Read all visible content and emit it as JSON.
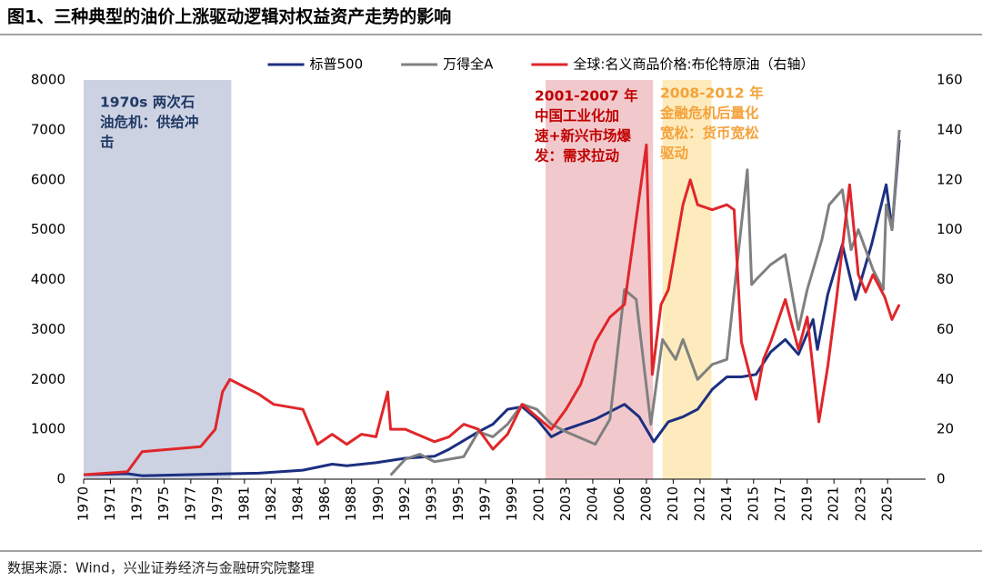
{
  "chart_data": {
    "type": "line",
    "title": "图1、三种典型的油价上涨驱动逻辑对权益资产走势的影响",
    "source": "数据来源：Wind，兴业证券经济与金融研究院整理",
    "legend": "top",
    "xlim": [
      1970,
      2027.6
    ],
    "xticks": [
      1970,
      {
        "value": 1971.83,
        "label": "1971"
      },
      {
        "value": 1973.67,
        "label": "1973"
      },
      {
        "value": 1975.5,
        "label": "1975"
      },
      {
        "value": 1977.33,
        "label": "1977"
      },
      {
        "value": 1979.17,
        "label": "1979"
      },
      1981,
      {
        "value": 1982.83,
        "label": "1982"
      },
      {
        "value": 1984.67,
        "label": "1984"
      },
      {
        "value": 1986.5,
        "label": "1986"
      },
      {
        "value": 1988.33,
        "label": "1988"
      },
      {
        "value": 1990.17,
        "label": "1990"
      },
      1992,
      {
        "value": 1993.83,
        "label": "1993"
      },
      {
        "value": 1995.67,
        "label": "1995"
      },
      {
        "value": 1997.5,
        "label": "1997"
      },
      {
        "value": 1999.33,
        "label": "1999"
      },
      {
        "value": 2001.17,
        "label": "2001"
      },
      2003,
      {
        "value": 2004.83,
        "label": "2004"
      },
      {
        "value": 2006.67,
        "label": "2006"
      },
      {
        "value": 2008.5,
        "label": "2008"
      },
      {
        "value": 2010.33,
        "label": "2010"
      },
      {
        "value": 2012.17,
        "label": "2012"
      },
      2014,
      {
        "value": 2015.83,
        "label": "2015"
      },
      {
        "value": 2017.67,
        "label": "2017"
      },
      {
        "value": 2019.5,
        "label": "2019"
      },
      {
        "value": 2021.33,
        "label": "2021"
      },
      {
        "value": 2023.17,
        "label": "2023"
      },
      2025
    ],
    "ylim": [
      0,
      8000
    ],
    "yticks": [
      0,
      1000,
      2000,
      3000,
      4000,
      5000,
      6000,
      7000,
      8000
    ],
    "y2lim": [
      0,
      160
    ],
    "y2ticks": [
      0,
      20,
      40,
      60,
      80,
      100,
      120,
      140,
      160
    ],
    "shaded_regions": [
      {
        "x": [
          1970,
          1980.1
        ],
        "color": "#ccd2e2",
        "text_color": "#1f3864",
        "lines": [
          "1970s  两次石",
          "油危机：供给冲",
          "击"
        ]
      },
      {
        "x": [
          2001.6,
          2008.95
        ],
        "color": "#f1c9cc",
        "text_color": "#c00000",
        "lines": [
          "2001-2007  年",
          "中国工业化加",
          "速+新兴市场爆",
          "发：需求拉动"
        ]
      },
      {
        "x": [
          2009.6,
          2012.95
        ],
        "color": "#fdebbd",
        "text_color": "#f4a23a",
        "lines": [
          "2008-2012  年",
          "金融危机后量化",
          "宽松：货币宽松",
          "驱动"
        ]
      }
    ],
    "series": [
      {
        "name": "标普500",
        "color": "#1c2f80",
        "axis": "y",
        "x": [
          1970,
          1973,
          1974,
          1980,
          1982,
          1985,
          1987,
          1988,
          1990,
          1992,
          1994,
          1995,
          1997,
          1998,
          1999,
          2000,
          2001,
          2002,
          2003,
          2005,
          2007,
          2008,
          2009,
          2010,
          2011,
          2012,
          2013,
          2014,
          2015,
          2016,
          2017,
          2018,
          2018.9,
          2019.9,
          2020.2,
          2020.9,
          2021.9,
          2022.8,
          2023.9,
          2024.9,
          2025.3,
          2025.8
        ],
        "values": [
          90,
          110,
          70,
          110,
          120,
          180,
          300,
          270,
          330,
          420,
          460,
          600,
          950,
          1100,
          1400,
          1450,
          1200,
          850,
          1000,
          1200,
          1500,
          1250,
          750,
          1150,
          1250,
          1400,
          1800,
          2050,
          2050,
          2100,
          2550,
          2800,
          2500,
          3200,
          2600,
          3700,
          4700,
          3600,
          4700,
          5900,
          5000,
          6800
        ]
      },
      {
        "name": "万得全A",
        "color": "#808080",
        "axis": "y",
        "x": [
          1991,
          1992,
          1993,
          1994,
          1996,
          1997,
          1998,
          1999,
          2000,
          2001,
          2002,
          2003,
          2005,
          2006,
          2007,
          2007.8,
          2008.8,
          2009.6,
          2010.5,
          2011,
          2012,
          2013,
          2014,
          2015.4,
          2015.7,
          2016,
          2017,
          2018,
          2018.9,
          2019.5,
          2020.5,
          2021,
          2021.9,
          2022.5,
          2023,
          2024,
          2024.7,
          2024.9,
          2025.3,
          2025.8
        ],
        "values": [
          80,
          400,
          500,
          350,
          450,
          950,
          850,
          1100,
          1500,
          1400,
          1100,
          950,
          700,
          1200,
          3800,
          3600,
          1100,
          2800,
          2400,
          2800,
          2000,
          2300,
          2400,
          6200,
          3900,
          4000,
          4300,
          4500,
          3000,
          3800,
          4800,
          5500,
          5800,
          4600,
          5000,
          4200,
          3800,
          5500,
          5000,
          7000
        ]
      },
      {
        "name": "全球:名义商品价格:布伦特原油（右轴）",
        "color": "#e0262a",
        "axis": "y2",
        "x": [
          1970,
          1973,
          1974,
          1978,
          1979,
          1979.5,
          1980,
          1981,
          1982,
          1983,
          1985,
          1986,
          1987,
          1988,
          1989,
          1990,
          1990.8,
          1991,
          1992,
          1994,
          1995,
          1996,
          1997,
          1998,
          1999,
          2000,
          2001,
          2002,
          2003,
          2004,
          2005,
          2006,
          2007,
          2008.5,
          2008.9,
          2009.5,
          2010,
          2011,
          2011.5,
          2012,
          2013,
          2014,
          2014.5,
          2015,
          2016,
          2016.5,
          2017,
          2018,
          2018.9,
          2019.5,
          2020.3,
          2020.9,
          2021.5,
          2022.4,
          2023,
          2023.5,
          2024,
          2024.8,
          2025.3,
          2025.8
        ],
        "values": [
          1.8,
          3,
          11,
          13,
          20,
          35,
          40,
          37,
          34,
          30,
          28,
          14,
          18,
          14,
          18,
          17,
          35,
          20,
          20,
          15,
          17,
          22,
          20,
          12,
          18,
          30,
          25,
          20,
          28,
          38,
          55,
          65,
          70,
          134,
          42,
          70,
          76,
          110,
          120,
          110,
          108,
          110,
          108,
          55,
          32,
          48,
          55,
          72,
          52,
          65,
          23,
          45,
          72,
          118,
          82,
          75,
          82,
          73,
          64,
          70
        ]
      }
    ]
  }
}
